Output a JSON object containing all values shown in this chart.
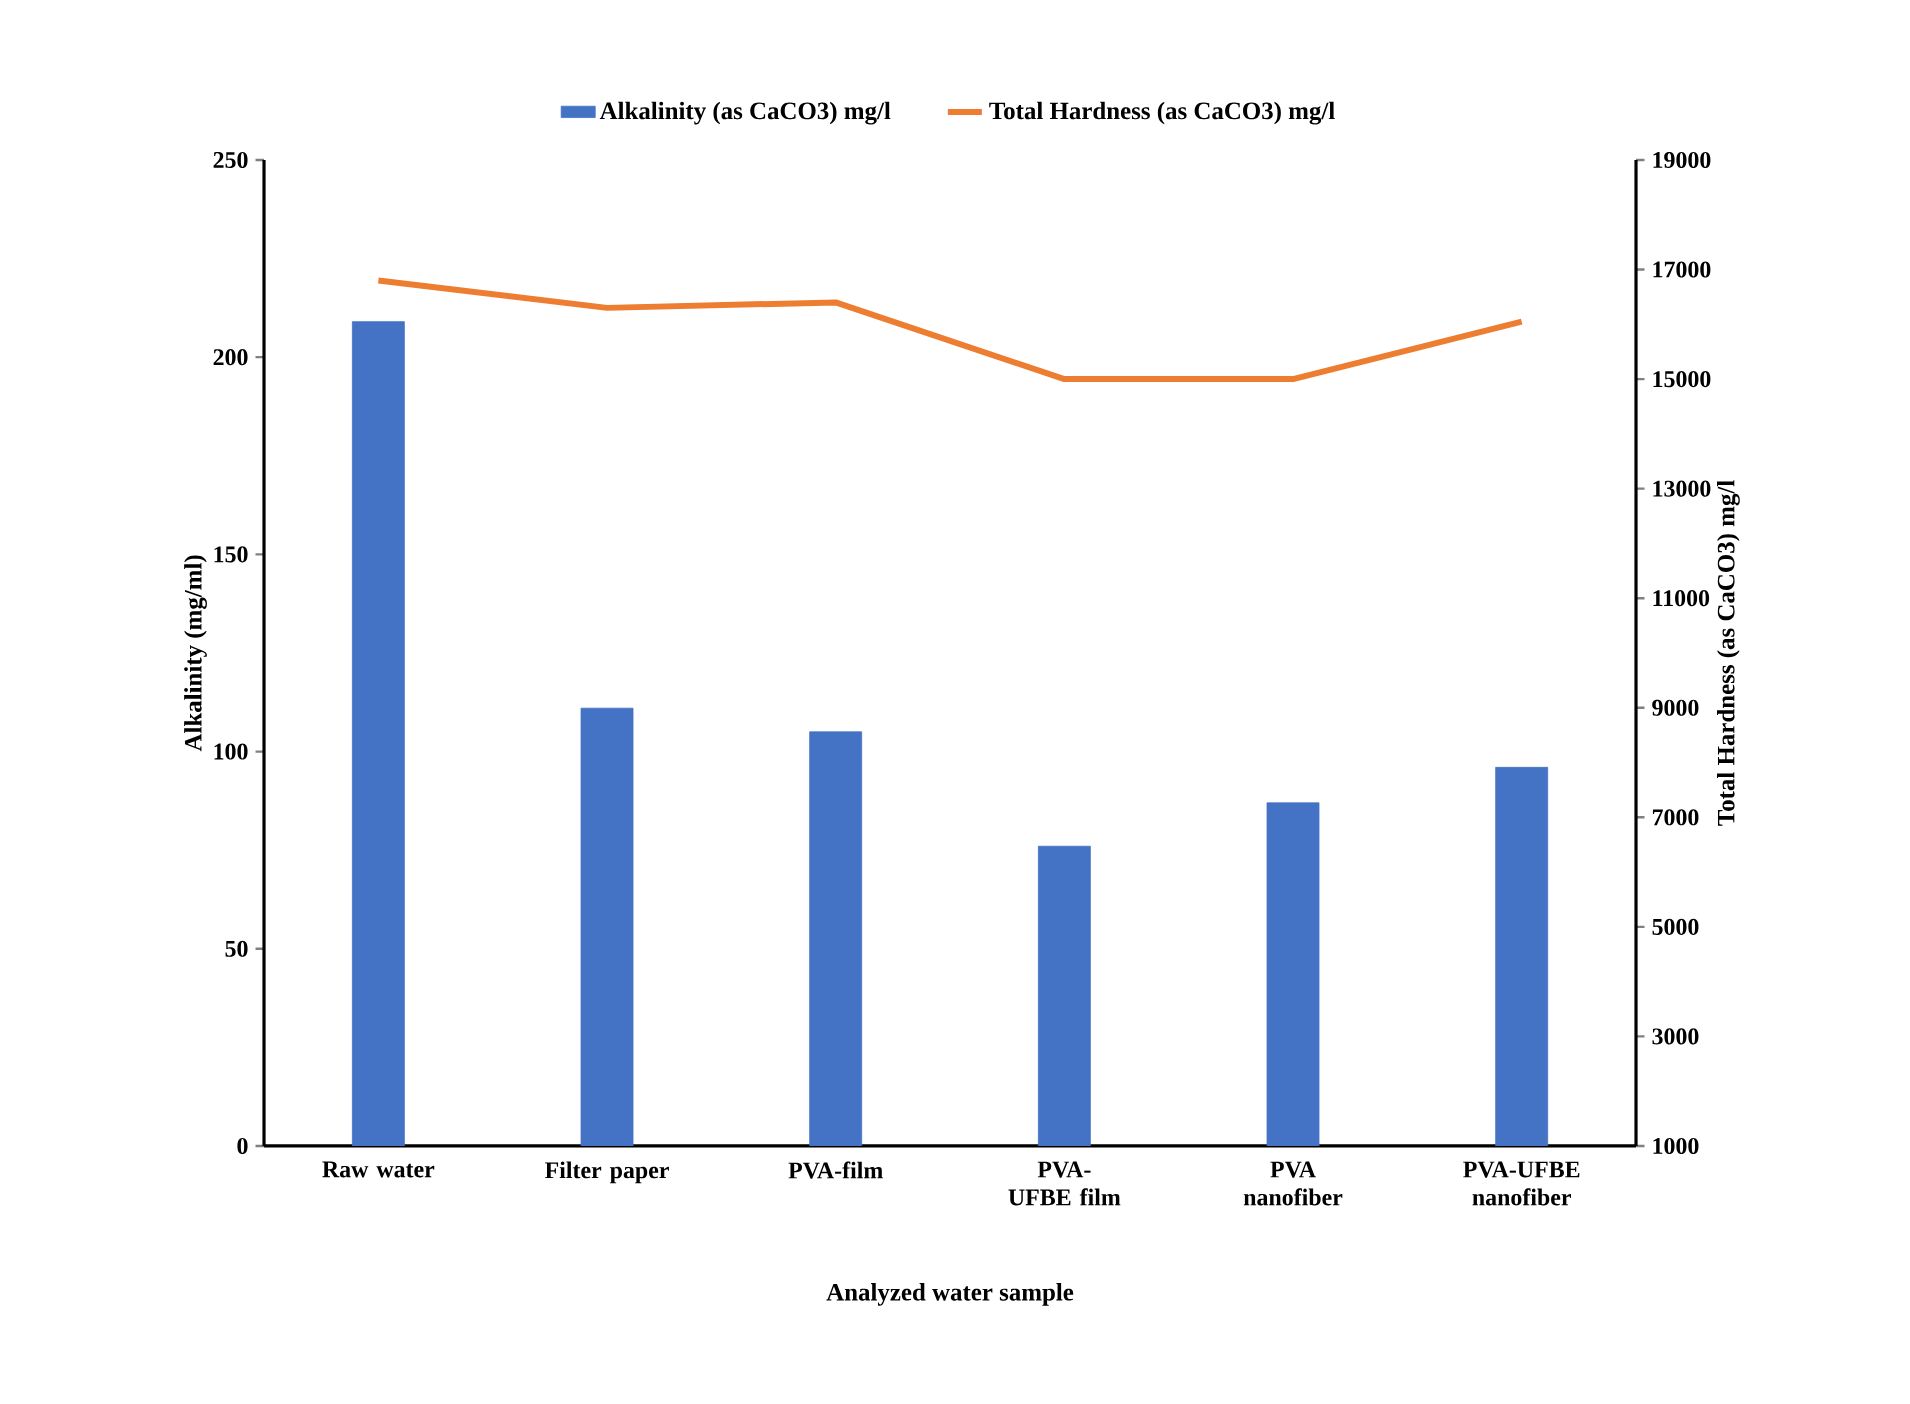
{
  "chart_data": {
    "type": "bar",
    "categories": [
      "Raw water",
      "Filter paper",
      "PVA-film",
      "PVA-UFBE film",
      "PVA nanofiber",
      "PVA-UFBE nanofiber"
    ],
    "series": [
      {
        "name": "Alkalinity (as CaCO3) mg/l",
        "color": "#4472c4",
        "values": [
          209,
          111,
          105,
          76,
          87,
          96
        ]
      },
      {
        "name": "Total Hardness (as CaCO3) mg/l",
        "type": "line",
        "axis": "y2",
        "color": "#ed7d31",
        "values": [
          16800,
          16300,
          16400,
          15000,
          15000,
          16050
        ]
      }
    ],
    "xlabel": "Analyzed water sample",
    "ylabel": "Alkalinity (mg/ml)",
    "y2label": "Total Hardness (as CaCO3) mg/l",
    "ylim": [
      0,
      250
    ],
    "yticks": [
      0,
      50,
      100,
      150,
      200,
      250
    ],
    "y2lim": [
      1000,
      19000
    ],
    "y2ticks": [
      1000,
      3000,
      5000,
      7000,
      9000,
      11000,
      13000,
      15000,
      17000,
      19000
    ],
    "legend": "top",
    "grid": false
  }
}
